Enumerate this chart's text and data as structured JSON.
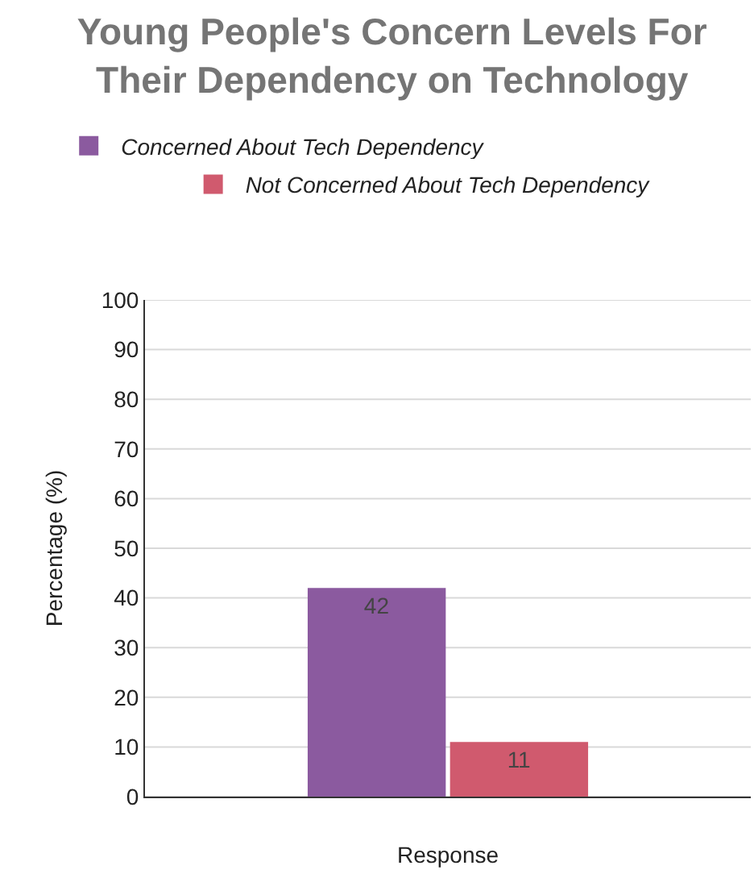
{
  "chart_data": {
    "type": "bar",
    "title": "Young People's Concern Levels For Their Dependency on Technology",
    "xlabel": "Response",
    "ylabel": "Percentage (%)",
    "categories": [
      null
    ],
    "series": [
      {
        "name": "Concerned About Tech Dependency",
        "color": "#8b5a9f",
        "values": [
          42
        ]
      },
      {
        "name": "Not Concerned About Tech Dependency",
        "color": "#d05a6e",
        "values": [
          11
        ]
      }
    ],
    "ylim": [
      0,
      100
    ],
    "yticks": [
      0,
      10,
      20,
      30,
      40,
      50,
      60,
      70,
      80,
      90,
      100
    ],
    "grid": "y",
    "legend": "top",
    "data_labels": true
  }
}
